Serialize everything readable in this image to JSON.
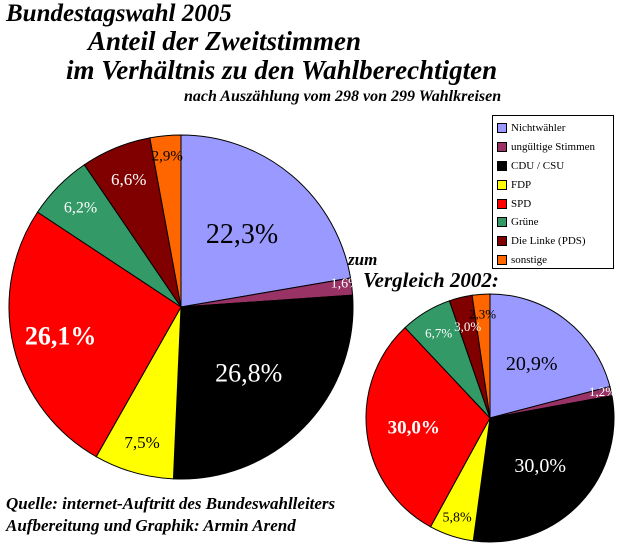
{
  "title_line1": "Bundestagswahl 2005",
  "title_line2": "Anteil der Zweitstimmen",
  "title_line3": "im Verhältnis zu den Wahlberechtigten",
  "subtitle": "nach Auszählung vom 298 von 299 Wahlkreisen",
  "comparison_line1": "zum",
  "comparison_line2": "Vergleich 2002:",
  "source_line1": "Quelle: internet-Auftritt des Bundeswahlleiters",
  "source_line2": "Aufbereitung und Graphik: Armin Arend",
  "chart_data": {
    "type": "pie",
    "categories": [
      "Nichtwähler",
      "ungültige Stimmen",
      "CDU / CSU",
      "FDP",
      "SPD",
      "Grüne",
      "Die Linke (PDS)",
      "sonstige"
    ],
    "colors": [
      "#9999ff",
      "#993366",
      "#000000",
      "#ffff00",
      "#ff0000",
      "#339966",
      "#800000",
      "#ff6600"
    ],
    "legend_position": "right",
    "series": [
      {
        "name": "Bundestagswahl 2005",
        "values": [
          22.3,
          1.6,
          26.8,
          7.5,
          26.1,
          6.2,
          6.6,
          2.9
        ],
        "labels": [
          "22,3%",
          "1,6%",
          "26,8%",
          "7,5%",
          "26,1%",
          "6,2%",
          "6,6%",
          "2,9%"
        ]
      },
      {
        "name": "2002",
        "values": [
          20.9,
          1.2,
          30.0,
          5.8,
          30.0,
          6.7,
          3.0,
          2.3
        ],
        "labels": [
          "20,9%",
          "1,2%",
          "30,0%",
          "5,8%",
          "30,0%",
          "6,7%",
          "3,0%",
          "2,3%"
        ]
      }
    ]
  }
}
